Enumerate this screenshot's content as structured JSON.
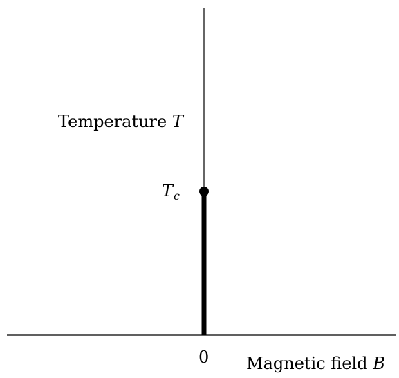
{
  "diagram": {
    "type": "phase-diagram",
    "x_axis": {
      "label_text": "Magnetic field ",
      "label_symbol": "B",
      "origin_tick": "0"
    },
    "y_axis": {
      "label_text": "Temperature ",
      "label_symbol": "T"
    },
    "critical_point": {
      "symbol": "T",
      "subscript": "c"
    },
    "colors": {
      "ink": "#000000",
      "background": "#ffffff"
    }
  }
}
